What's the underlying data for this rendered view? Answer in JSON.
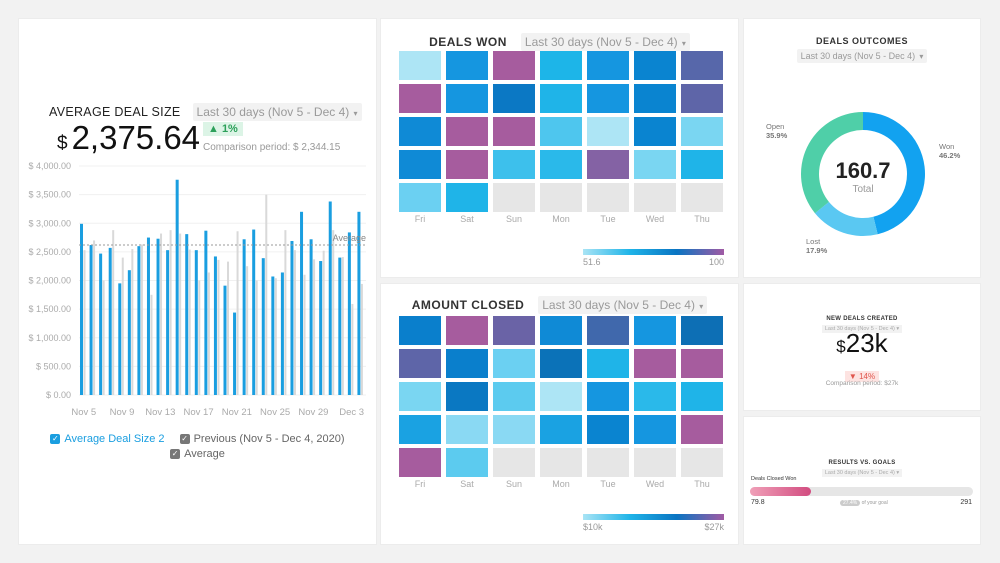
{
  "avg_deal": {
    "title": "AVERAGE DEAL SIZE",
    "period": "Last 30 days (Nov 5 - Dec 4)",
    "currency": "$",
    "value": "2,375.64",
    "delta": "▲ 1%",
    "comparison": "Comparison period: $ 2,344.15",
    "legend": [
      {
        "label": "Average Deal Size 2",
        "color": "#1a9ee0"
      },
      {
        "label": "Previous (Nov 5 - Dec 4, 2020)",
        "color": "#777777"
      },
      {
        "label": "Average",
        "color": "#777777"
      }
    ]
  },
  "chart_data": {
    "type": "bar",
    "title": "AVERAGE DEAL SIZE",
    "ylim": [
      0,
      4000
    ],
    "yticks": [
      "$ 0.00",
      "$ 500.00",
      "$ 1,000.00",
      "$ 1,500.00",
      "$ 2,000.00",
      "$ 2,500.00",
      "$ 3,000.00",
      "$ 3,500.00",
      "$ 4,000.00"
    ],
    "xtick_labels": [
      "Nov 5",
      "Nov 9",
      "Nov 13",
      "Nov 17",
      "Nov 21",
      "Nov 25",
      "Nov 29",
      "Dec 3"
    ],
    "average": 2620,
    "average_label": "Average",
    "series": [
      {
        "name": "Average Deal Size 2",
        "color": "#1a9ee0",
        "values": [
          2990,
          2620,
          2470,
          2570,
          1950,
          2180,
          2600,
          2750,
          2730,
          2530,
          3760,
          2810,
          2530,
          2870,
          2420,
          1910,
          1440,
          2720,
          2890,
          2390,
          2070,
          2140,
          2690,
          3200,
          2720,
          2340,
          3380,
          2400,
          2840,
          3200
        ]
      },
      {
        "name": "Previous (Nov 5 - Dec 4, 2020)",
        "color": "#d9d9d9",
        "values": [
          2530,
          2700,
          2000,
          2880,
          2400,
          2550,
          2630,
          1750,
          2820,
          2880,
          2820,
          2540,
          2000,
          2140,
          2360,
          2330,
          2860,
          2250,
          2000,
          3500,
          2040,
          2880,
          2530,
          2100,
          2370,
          2520,
          2880,
          2410,
          1590,
          1940
        ]
      }
    ]
  },
  "deals_won": {
    "title": "DEALS WON",
    "period": "Last 30 days (Nov 5 - Dec 4)",
    "days": [
      "Fri",
      "Sat",
      "Sun",
      "Mon",
      "Tue",
      "Wed",
      "Thu"
    ],
    "scale_min": "51.6",
    "scale_max": "100",
    "cells": [
      [
        "#ade5f5",
        "#1596e0",
        "#a65c9e",
        "#1db5e8",
        "#1596e0",
        "#0a84d0",
        "#5767aa"
      ],
      [
        "#a65c9e",
        "#1596e0",
        "#0b78c4",
        "#1fb4e8",
        "#1596e0",
        "#0a84d0",
        "#5e65a8"
      ],
      [
        "#0f8ad6",
        "#a65c9e",
        "#a65c9e",
        "#4ec6ee",
        "#ade5f5",
        "#0a84d0",
        "#7ad6f2"
      ],
      [
        "#0f8ad6",
        "#a65c9e",
        "#3dc0ec",
        "#2ab9ea",
        "#8462a4",
        "#7ad6f2",
        "#1fb4e8"
      ],
      [
        "#6bd0f2",
        "#1fb4e8",
        "#e6e6e6",
        "#e6e6e6",
        "#e6e6e6",
        "#e6e6e6",
        "#e6e6e6"
      ]
    ]
  },
  "amount_closed": {
    "title": "AMOUNT CLOSED",
    "period": "Last 30 days (Nov 5 - Dec 4)",
    "days": [
      "Fri",
      "Sat",
      "Sun",
      "Mon",
      "Tue",
      "Wed",
      "Thu"
    ],
    "scale_min": "$10k",
    "scale_max": "$27k",
    "cells": [
      [
        "#0a7fcc",
        "#a65c9e",
        "#6a63a6",
        "#0f8ad6",
        "#4068ac",
        "#1596e0",
        "#0d6fb5"
      ],
      [
        "#5e65a8",
        "#0a7fcc",
        "#6bd0f2",
        "#0b72b8",
        "#1fb4e8",
        "#a65c9e",
        "#a65c9e"
      ],
      [
        "#7ad6f2",
        "#0a78c2",
        "#5ccbef",
        "#ade5f5",
        "#1596e0",
        "#2ab9ea",
        "#1fb4e8"
      ],
      [
        "#1aa2e2",
        "#8ad9f3",
        "#8ad9f3",
        "#1aa2e2",
        "#0a84d0",
        "#1596e0",
        "#a65c9e"
      ],
      [
        "#a65c9e",
        "#5ccbef",
        "#e6e6e6",
        "#e6e6e6",
        "#e6e6e6",
        "#e6e6e6",
        "#e6e6e6"
      ]
    ]
  },
  "outcomes": {
    "title": "DEALS OUTCOMES",
    "period": "Last 30 days (Nov 5 - Dec 4)",
    "total": "160.7",
    "total_label": "Total",
    "slices": [
      {
        "name": "Won",
        "pct": 46.2,
        "label": "46.2%",
        "color": "#12a2f0"
      },
      {
        "name": "Lost",
        "pct": 17.9,
        "label": "17.9%",
        "color": "#5ac8f2"
      },
      {
        "name": "Open",
        "pct": 35.9,
        "label": "35.9%",
        "color": "#4fcfa8"
      }
    ]
  },
  "new_deals": {
    "title": "NEW DEALS CREATED",
    "period": "Last 30 days (Nov 5 - Dec 4)",
    "currency": "$",
    "value": "23k",
    "delta": "▼ 14%",
    "comparison": "Comparison period: $27k"
  },
  "results": {
    "title": "RESULTS VS. GOALS",
    "period": "Last 30 days (Nov 5 - Dec 4)",
    "metric": "Deals Closed Won",
    "current": "79.8",
    "goal": "291",
    "progress": 0.274,
    "pill": "27.4%",
    "pill_suffix": "of your goal"
  }
}
